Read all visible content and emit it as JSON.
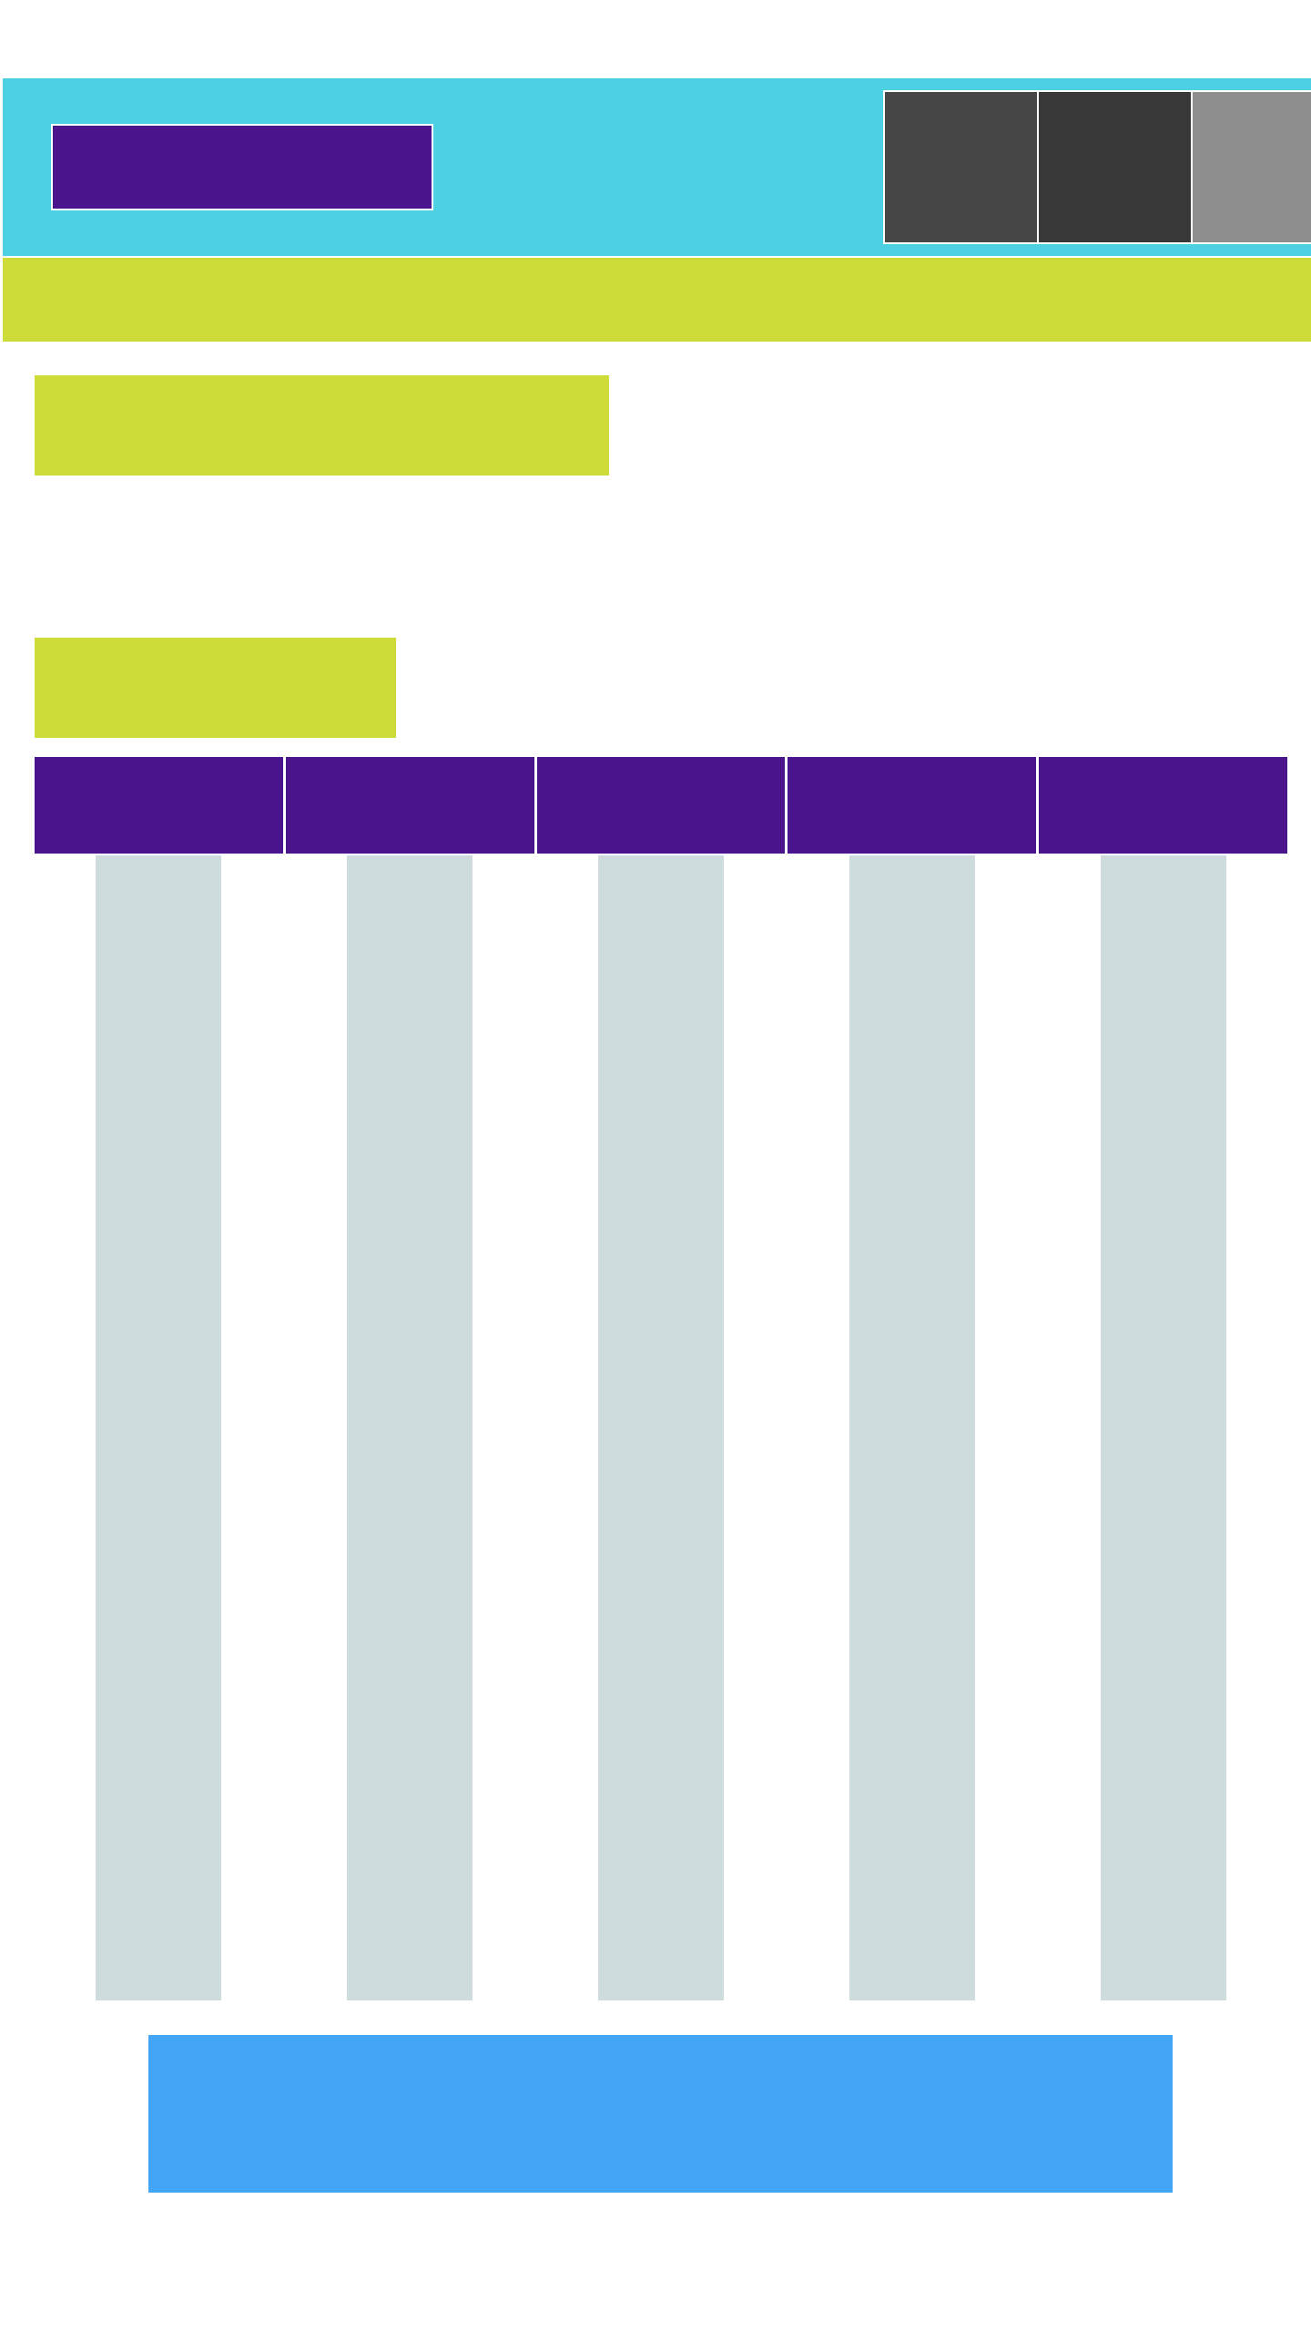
{
  "colors": {
    "header": "#4dd0e1",
    "brand": "#4a148c",
    "accent": "#cddc39",
    "column": "#cfdcdd",
    "cta": "#42a5f5",
    "tiles": [
      "#464646",
      "#383838",
      "#8e8e8e"
    ]
  },
  "header": {
    "logo": "",
    "tiles": [
      "",
      "",
      ""
    ]
  },
  "nav": {
    "label": ""
  },
  "sections": {
    "primary_heading": "",
    "secondary_heading": ""
  },
  "table": {
    "headers": [
      "",
      "",
      "",
      "",
      ""
    ],
    "columns": [
      "",
      "",
      "",
      "",
      ""
    ]
  },
  "cta": {
    "label": ""
  }
}
